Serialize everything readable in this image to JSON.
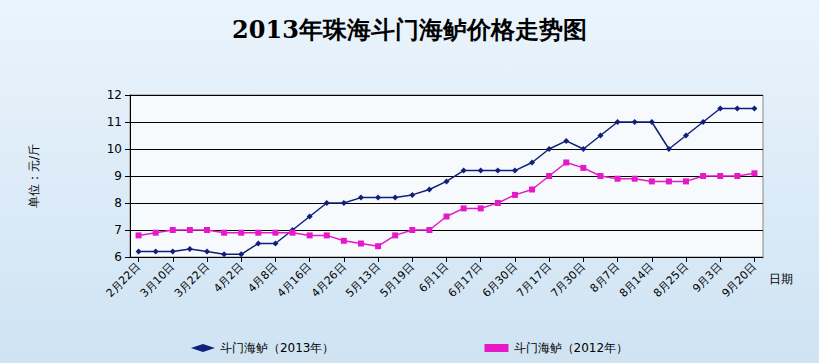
{
  "chart_data": {
    "type": "line",
    "title": "2013年珠海斗门海鲈价格走势图",
    "y_label": "单位：元/斤",
    "x_label": "日期",
    "categories": [
      "2月22日",
      null,
      "3月10日",
      null,
      "3月22日",
      null,
      "4月2日",
      null,
      "4月8日",
      null,
      "4月16日",
      null,
      "4月26日",
      null,
      "5月13日",
      null,
      "5月19日",
      null,
      "6月1日",
      null,
      "6月17日",
      null,
      "6月30日",
      null,
      "7月17日",
      null,
      "7月30日",
      null,
      "8月7日",
      null,
      "8月14日",
      null,
      "8月25日",
      null,
      "9月3日",
      null,
      "9月20日"
    ],
    "series": [
      {
        "name": "斗门海鲈（2013年）",
        "color": "#10207a",
        "marker": "diamond",
        "line_style": "solid",
        "values": [
          6.2,
          6.2,
          6.2,
          6.3,
          6.2,
          6.1,
          6.1,
          6.5,
          6.5,
          7.0,
          7.5,
          8.0,
          8.0,
          8.2,
          8.2,
          8.2,
          8.3,
          8.5,
          8.8,
          9.2,
          9.2,
          9.2,
          9.2,
          9.5,
          10.0,
          10.3,
          10.0,
          10.5,
          11.0,
          11.0,
          11.0,
          10.0,
          10.5,
          11.0,
          11.5,
          11.5,
          11.5
        ]
      },
      {
        "name": "斗门海鲈（2012年）",
        "color": "#e619c8",
        "marker": "rect",
        "line_style": "solid",
        "values": [
          6.8,
          6.9,
          7.0,
          7.0,
          7.0,
          6.9,
          6.9,
          6.9,
          6.9,
          6.9,
          6.8,
          6.8,
          6.6,
          6.5,
          6.4,
          6.8,
          7.0,
          7.0,
          7.5,
          7.8,
          7.8,
          8.0,
          8.3,
          8.5,
          9.0,
          9.5,
          9.3,
          9.0,
          8.9,
          8.9,
          8.8,
          8.8,
          8.8,
          9.0,
          9.0,
          9.0,
          9.1
        ]
      }
    ],
    "ylim": [
      6,
      12
    ],
    "yticks": [
      6,
      7,
      8,
      9,
      10,
      11,
      12
    ],
    "grid": true,
    "legend": "bottom"
  }
}
